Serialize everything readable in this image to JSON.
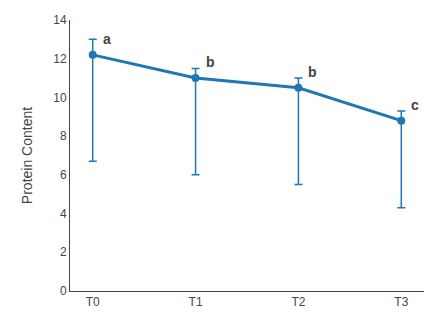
{
  "chart_data": {
    "type": "line",
    "categories": [
      "T0",
      "T1",
      "T2",
      "T3"
    ],
    "values": [
      12.2,
      11.0,
      10.5,
      8.8
    ],
    "errors_upper": [
      0.8,
      0.5,
      0.5,
      0.5
    ],
    "errors_lower": [
      5.5,
      5.0,
      5.0,
      4.5
    ],
    "annotations": [
      "a",
      "b",
      "b",
      "c"
    ],
    "ylabel": "Protein Content",
    "ylim": [
      0,
      14
    ],
    "yticks": [
      0,
      2,
      4,
      6,
      8,
      10,
      12,
      14
    ],
    "grid": false,
    "marker": "circle"
  }
}
